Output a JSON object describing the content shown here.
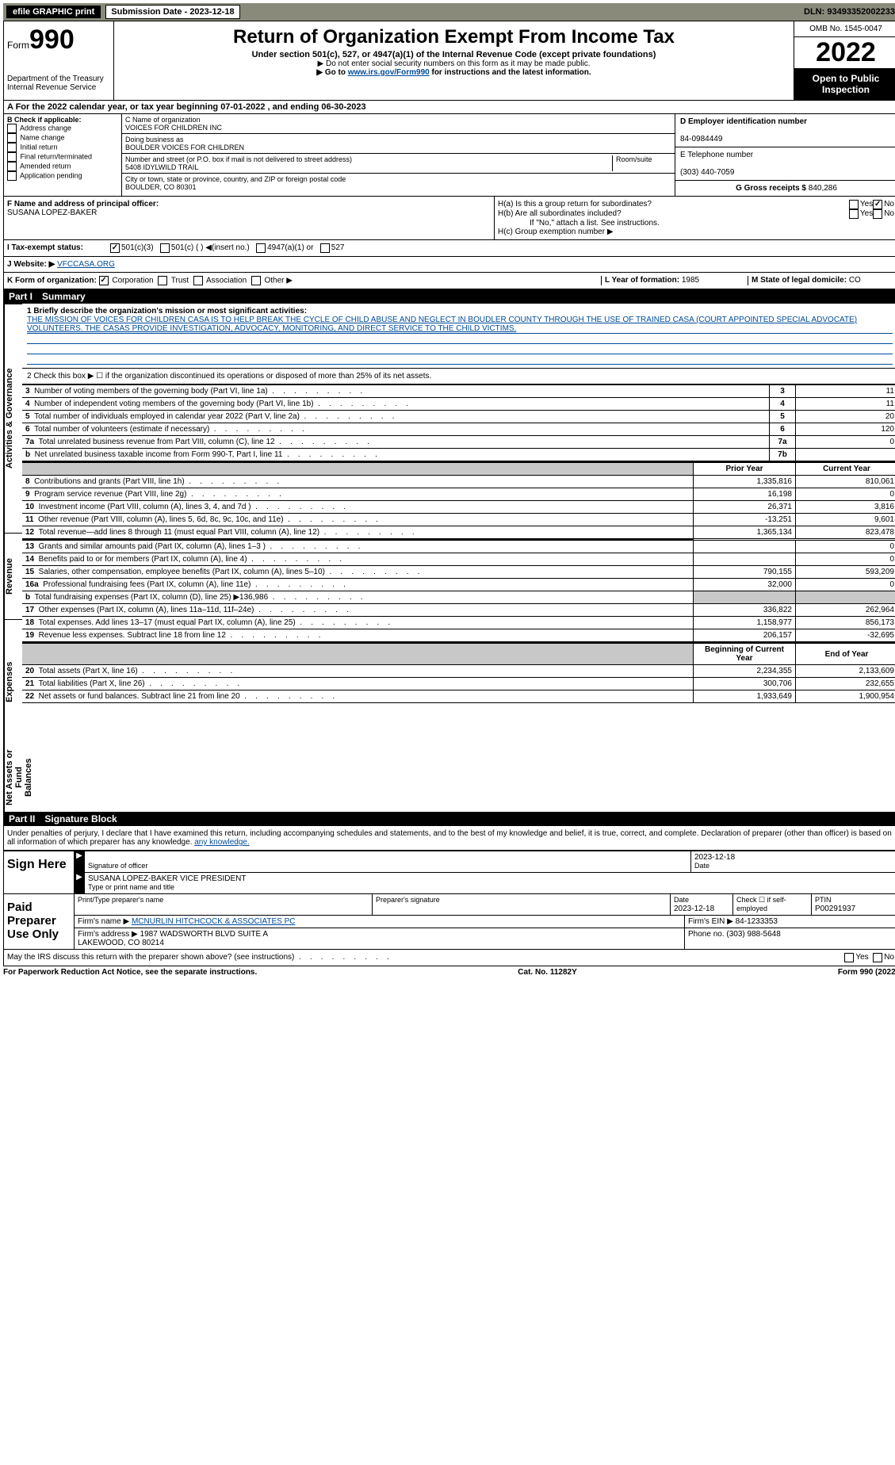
{
  "topbar": {
    "efile": "efile GRAPHIC print",
    "submission": "Submission Date - 2023-12-18",
    "dln": "DLN: 93493352002233"
  },
  "header": {
    "form_prefix": "Form",
    "form_no": "990",
    "dept": "Department of the Treasury",
    "irs": "Internal Revenue Service",
    "title": "Return of Organization Exempt From Income Tax",
    "subtitle": "Under section 501(c), 527, or 4947(a)(1) of the Internal Revenue Code (except private foundations)",
    "warn": "▶ Do not enter social security numbers on this form as it may be made public.",
    "goto_pre": "▶ Go to ",
    "goto_link": "www.irs.gov/Form990",
    "goto_post": " for instructions and the latest information.",
    "omb": "OMB No. 1545-0047",
    "year": "2022",
    "open": "Open to Public Inspection"
  },
  "a": {
    "text": "A For the 2022 calendar year, or tax year beginning 07-01-2022    , and ending 06-30-2023"
  },
  "b": {
    "label": "B Check if applicable:",
    "items": [
      "Address change",
      "Name change",
      "Initial return",
      "Final return/terminated",
      "Amended return",
      "Application pending"
    ]
  },
  "c": {
    "name_label": "C Name of organization",
    "name": "VOICES FOR CHILDREN INC",
    "dba_label": "Doing business as",
    "dba": "BOULDER VOICES FOR CHILDREN",
    "street_label": "Number and street (or P.O. box if mail is not delivered to street address)",
    "room_label": "Room/suite",
    "street": "5408 IDYLWILD TRAIL",
    "city_label": "City or town, state or province, country, and ZIP or foreign postal code",
    "city": "BOULDER, CO  80301"
  },
  "d": {
    "label": "D Employer identification number",
    "val": "84-0984449"
  },
  "e": {
    "label": "E Telephone number",
    "val": "(303) 440-7059"
  },
  "g": {
    "label": "G Gross receipts $",
    "val": "840,286"
  },
  "f": {
    "label": "F  Name and address of principal officer:",
    "name": "SUSANA LOPEZ-BAKER"
  },
  "h": {
    "a": "H(a)  Is this a group return for subordinates?",
    "b": "H(b)  Are all subordinates included?",
    "b_note": "If \"No,\" attach a list. See instructions.",
    "c": "H(c)  Group exemption number ▶",
    "yes": "Yes",
    "no": "No"
  },
  "i": {
    "label": "I    Tax-exempt status:",
    "opts": [
      "501(c)(3)",
      "501(c) (  ) ◀(insert no.)",
      "4947(a)(1) or",
      "527"
    ]
  },
  "j": {
    "label": "J    Website: ▶",
    "val": " VFCCASA.ORG"
  },
  "k": {
    "label": "K Form of organization:",
    "opts": [
      "Corporation",
      "Trust",
      "Association",
      "Other ▶"
    ]
  },
  "l": {
    "label": "L Year of formation:",
    "val": "1985"
  },
  "m": {
    "label": "M State of legal domicile:",
    "val": "CO"
  },
  "part1": {
    "label": "Part I",
    "title": "Summary"
  },
  "mission": {
    "q": "1 Briefly describe the organization's mission or most significant activities:",
    "text": "THE MISSION OF VOICES FOR CHILDREN CASA IS TO HELP BREAK THE CYCLE OF CHILD ABUSE AND NEGLECT IN BOUDLER COUNTY THROUGH THE USE OF TRAINED CASA (COURT APPOINTED SPECIAL ADVOCATE) VOLUNTEERS. THE CASAS PROVIDE INVESTIGATION, ADVOCACY, MONITORING, AND DIRECT SERVICE TO THE CHILD VICTIMS."
  },
  "gov": {
    "line2": "2   Check this box ▶ ☐  if the organization discontinued its operations or disposed of more than 25% of its net assets.",
    "rows": [
      {
        "n": "3",
        "d": "Number of voting members of the governing body (Part VI, line 1a)",
        "box": "3",
        "v": "11"
      },
      {
        "n": "4",
        "d": "Number of independent voting members of the governing body (Part VI, line 1b)",
        "box": "4",
        "v": "11"
      },
      {
        "n": "5",
        "d": "Total number of individuals employed in calendar year 2022 (Part V, line 2a)",
        "box": "5",
        "v": "20"
      },
      {
        "n": "6",
        "d": "Total number of volunteers (estimate if necessary)",
        "box": "6",
        "v": "120"
      },
      {
        "n": "7a",
        "d": "Total unrelated business revenue from Part VIII, column (C), line 12",
        "box": "7a",
        "v": "0"
      },
      {
        "n": "b",
        "d": "Net unrelated business taxable income from Form 990-T, Part I, line 11",
        "box": "7b",
        "v": ""
      }
    ]
  },
  "vtabs": {
    "gov": "Activities & Governance",
    "rev": "Revenue",
    "exp": "Expenses",
    "net": "Net Assets or Fund Balances"
  },
  "cols": {
    "prior": "Prior Year",
    "current": "Current Year",
    "boy": "Beginning of Current Year",
    "eoy": "End of Year"
  },
  "rev": [
    {
      "n": "8",
      "d": "Contributions and grants (Part VIII, line 1h)",
      "p": "1,335,816",
      "c": "810,061"
    },
    {
      "n": "9",
      "d": "Program service revenue (Part VIII, line 2g)",
      "p": "16,198",
      "c": "0"
    },
    {
      "n": "10",
      "d": "Investment income (Part VIII, column (A), lines 3, 4, and 7d )",
      "p": "26,371",
      "c": "3,816"
    },
    {
      "n": "11",
      "d": "Other revenue (Part VIII, column (A), lines 5, 6d, 8c, 9c, 10c, and 11e)",
      "p": "-13,251",
      "c": "9,601"
    },
    {
      "n": "12",
      "d": "Total revenue—add lines 8 through 11 (must equal Part VIII, column (A), line 12)",
      "p": "1,365,134",
      "c": "823,478"
    }
  ],
  "exp": [
    {
      "n": "13",
      "d": "Grants and similar amounts paid (Part IX, column (A), lines 1–3 )",
      "p": "",
      "c": "0"
    },
    {
      "n": "14",
      "d": "Benefits paid to or for members (Part IX, column (A), line 4)",
      "p": "",
      "c": "0"
    },
    {
      "n": "15",
      "d": "Salaries, other compensation, employee benefits (Part IX, column (A), lines 5–10)",
      "p": "790,155",
      "c": "593,209"
    },
    {
      "n": "16a",
      "d": "Professional fundraising fees (Part IX, column (A), line 11e)",
      "p": "32,000",
      "c": "0"
    },
    {
      "n": "b",
      "d": "Total fundraising expenses (Part IX, column (D), line 25) ▶136,986",
      "p": "GREY",
      "c": "GREY"
    },
    {
      "n": "17",
      "d": "Other expenses (Part IX, column (A), lines 11a–11d, 11f–24e)",
      "p": "336,822",
      "c": "262,964"
    },
    {
      "n": "18",
      "d": "Total expenses. Add lines 13–17 (must equal Part IX, column (A), line 25)",
      "p": "1,158,977",
      "c": "856,173"
    },
    {
      "n": "19",
      "d": "Revenue less expenses. Subtract line 18 from line 12",
      "p": "206,157",
      "c": "-32,695"
    }
  ],
  "net": [
    {
      "n": "20",
      "d": "Total assets (Part X, line 16)",
      "p": "2,234,355",
      "c": "2,133,609"
    },
    {
      "n": "21",
      "d": "Total liabilities (Part X, line 26)",
      "p": "300,706",
      "c": "232,655"
    },
    {
      "n": "22",
      "d": "Net assets or fund balances. Subtract line 21 from line 20",
      "p": "1,933,649",
      "c": "1,900,954"
    }
  ],
  "part2": {
    "label": "Part II",
    "title": "Signature Block"
  },
  "penalties": "Under penalties of perjury, I declare that I have examined this return, including accompanying schedules and statements, and to the best of my knowledge and belief, it is true, correct, and complete. Declaration of preparer (other than officer) is based on all information of which preparer has any knowledge.",
  "sign": {
    "label": "Sign Here",
    "sig_officer": "Signature of officer",
    "date": "Date",
    "date_val": "2023-12-18",
    "name": "SUSANA LOPEZ-BAKER  VICE PRESIDENT",
    "name_label": "Type or print name and title"
  },
  "preparer": {
    "label": "Paid Preparer Use Only",
    "h_name": "Print/Type preparer's name",
    "h_sig": "Preparer's signature",
    "h_date": "Date",
    "date_val": "2023-12-18",
    "h_check": "Check ☐ if self-employed",
    "h_ptin": "PTIN",
    "ptin": "P00291937",
    "firm_name_l": "Firm's name    ▶",
    "firm_name": "MCNURLIN HITCHCOCK & ASSOCIATES PC",
    "firm_ein_l": "Firm's EIN ▶",
    "firm_ein": "84-1233353",
    "firm_addr_l": "Firm's address ▶",
    "firm_addr": "1987 WADSWORTH BLVD SUITE A\nLAKEWOOD, CO  80214",
    "phone_l": "Phone no.",
    "phone": "(303) 988-5648"
  },
  "discuss": "May the IRS discuss this return with the preparer shown above? (see instructions)",
  "footer": {
    "left": "For Paperwork Reduction Act Notice, see the separate instructions.",
    "mid": "Cat. No. 11282Y",
    "right": "Form 990 (2022)"
  }
}
